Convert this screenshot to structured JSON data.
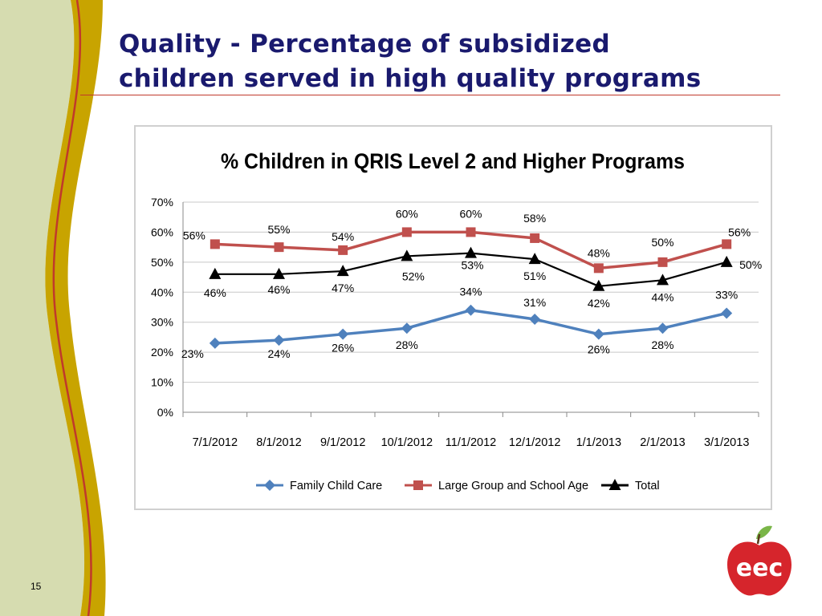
{
  "slide": {
    "title_line1": "Quality - Percentage of subsidized",
    "title_line2": "children served in high quality programs",
    "page_number": "15",
    "logo_text": "eec",
    "colors": {
      "title": "#1a1a6e",
      "rule": "#c0392b",
      "band_green": "#d6dcb0",
      "band_gold": "#c8a400",
      "band_red": "#c0392b",
      "logo_red": "#d6252c",
      "logo_leaf": "#7ab648"
    }
  },
  "chart_data": {
    "type": "line",
    "title": "% Children in QRIS Level 2 and Higher Programs",
    "categories": [
      "7/1/2012",
      "8/1/2012",
      "9/1/2012",
      "10/1/2012",
      "11/1/2012",
      "12/1/2012",
      "1/1/2013",
      "2/1/2013",
      "3/1/2013"
    ],
    "y_ticks": [
      "0%",
      "10%",
      "20%",
      "30%",
      "40%",
      "50%",
      "60%",
      "70%"
    ],
    "ylim": [
      0,
      70
    ],
    "grid": "horizontal",
    "legend_position": "bottom",
    "series": [
      {
        "name": "Family Child Care",
        "color": "#4f81bd",
        "marker": "diamond",
        "values": [
          23,
          24,
          26,
          28,
          34,
          31,
          26,
          28,
          33
        ],
        "labels": [
          "23%",
          "24%",
          "26%",
          "28%",
          "34%",
          "31%",
          "26%",
          "28%",
          "33%"
        ]
      },
      {
        "name": "Large Group and School Age",
        "color": "#c0504d",
        "marker": "square",
        "values": [
          56,
          55,
          54,
          60,
          60,
          58,
          48,
          50,
          56
        ],
        "labels": [
          "56%",
          "55%",
          "54%",
          "60%",
          "60%",
          "58%",
          "48%",
          "50%",
          "56%"
        ]
      },
      {
        "name": "Total",
        "color": "#000000",
        "marker": "triangle",
        "values": [
          46,
          46,
          47,
          52,
          53,
          51,
          42,
          44,
          50
        ],
        "labels": [
          "46%",
          "46%",
          "47%",
          "52%",
          "53%",
          "51%",
          "42%",
          "44%",
          "50%"
        ]
      }
    ]
  }
}
